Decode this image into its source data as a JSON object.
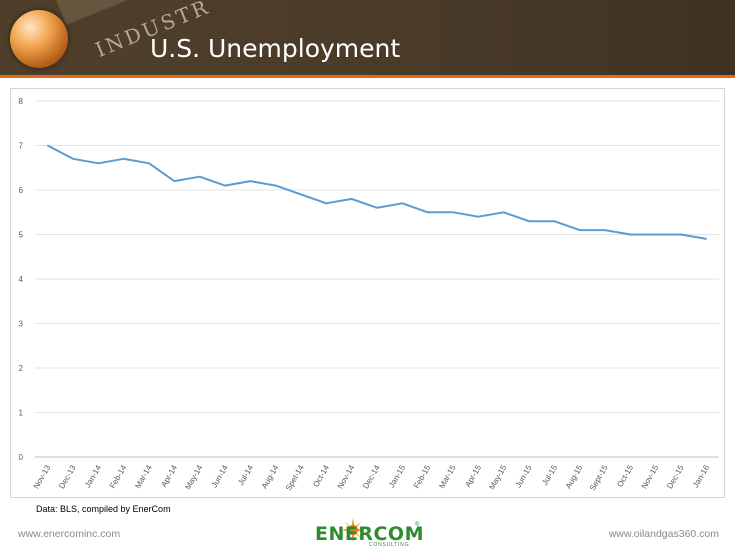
{
  "header": {
    "title": "U.S. Unemployment",
    "banner_text": "INDUSTR"
  },
  "chart_data": {
    "type": "line",
    "title": "",
    "xlabel": "",
    "ylabel": "",
    "ylim": [
      0,
      8
    ],
    "yticks": [
      "0",
      "1",
      "2",
      "3",
      "4",
      "5",
      "6",
      "7",
      "8"
    ],
    "grid": true,
    "categories": [
      "Nov-13",
      "Dec-13",
      "Jan-14",
      "Feb-14",
      "Mar-14",
      "Apr-14",
      "May-14",
      "Jun-14",
      "Jul-14",
      "Aug-14",
      "Spet-14",
      "Oct-14",
      "Nov-14",
      "Dec-14",
      "Jan-15",
      "Feb-15",
      "Mar-15",
      "Apr-15",
      "May-15",
      "Jun-15",
      "Jul-15",
      "Aug-15",
      "Sept-15",
      "Oct-15",
      "Nov-15",
      "Dec-15",
      "Jan-16"
    ],
    "series": [
      {
        "color": "#5b9bd5",
        "values": [
          7.0,
          6.7,
          6.6,
          6.7,
          6.6,
          6.2,
          6.3,
          6.1,
          6.2,
          6.1,
          5.9,
          5.7,
          5.8,
          5.6,
          5.7,
          5.5,
          5.5,
          5.4,
          5.5,
          5.3,
          5.3,
          5.1,
          5.1,
          5.0,
          5.0,
          5.0,
          4.9
        ]
      }
    ]
  },
  "source_note": "Data: BLS, compiled by EnerCom",
  "footer": {
    "left_url": "www.enercominc.com",
    "right_url": "www.oilandgas360.com",
    "logo_text": "ENERCOM",
    "logo_sub": "CONSULTING",
    "logo_mark": "®"
  },
  "colors": {
    "header_bg": "#4f3f2a",
    "accent_stripe": "#e06a19",
    "line": "#5b9bd5",
    "logo_green": "#2f8b2f",
    "logo_orange": "#f39b1e"
  }
}
